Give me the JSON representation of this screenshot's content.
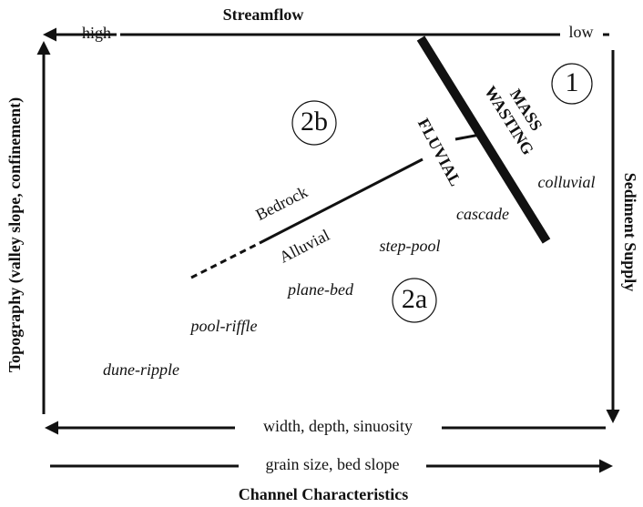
{
  "title": "Streamflow",
  "top_axis": {
    "left": "high",
    "right": "low"
  },
  "left_axis": "Topography (valley slope, confinement)",
  "right_axis": "Sediment Supply",
  "bottom_axis_upper": "width, depth, sinuosity",
  "bottom_axis_lower": "grain size, bed slope",
  "footer": "Channel Characteristics",
  "zones": [
    "1",
    "2b",
    "2a"
  ],
  "process_labels": {
    "mass_wasting": [
      "MASS",
      "WASTING"
    ],
    "fluvial": "FLUVIAL",
    "bedrock": "Bedrock",
    "alluvial": "Alluvial"
  },
  "channel_types": [
    "colluvial",
    "cascade",
    "step-pool",
    "plane-bed",
    "pool-riffle",
    "dune-ripple"
  ]
}
